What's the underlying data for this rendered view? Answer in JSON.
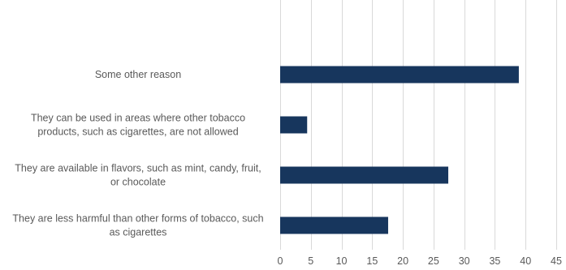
{
  "chart_data": {
    "type": "bar",
    "orientation": "horizontal",
    "categories": [
      "Some other reason",
      "They can be used in areas where other tobacco products, such as cigarettes, are not allowed",
      "They are available in flavors, such as mint, candy, fruit, or chocolate",
      "They are less harmful than other forms of tobacco, such as cigarettes"
    ],
    "category_lines": [
      [
        "Some other reason"
      ],
      [
        "They can be used in areas where other tobacco",
        "products, such as cigarettes, are not allowed"
      ],
      [
        "They are available in flavors, such as mint, candy, fruit,",
        "or chocolate"
      ],
      [
        "They are less harmful than other forms of tobacco, such",
        "as cigarettes"
      ]
    ],
    "values": [
      38.9,
      4.4,
      27.4,
      17.6
    ],
    "xlim": [
      0,
      45
    ],
    "xticks": [
      "0",
      "5",
      "10",
      "15",
      "20",
      "25",
      "30",
      "35",
      "40",
      "45"
    ],
    "title": "",
    "xlabel": "",
    "ylabel": "",
    "grid": true,
    "legend": "none",
    "bar_color": "#17365d"
  }
}
